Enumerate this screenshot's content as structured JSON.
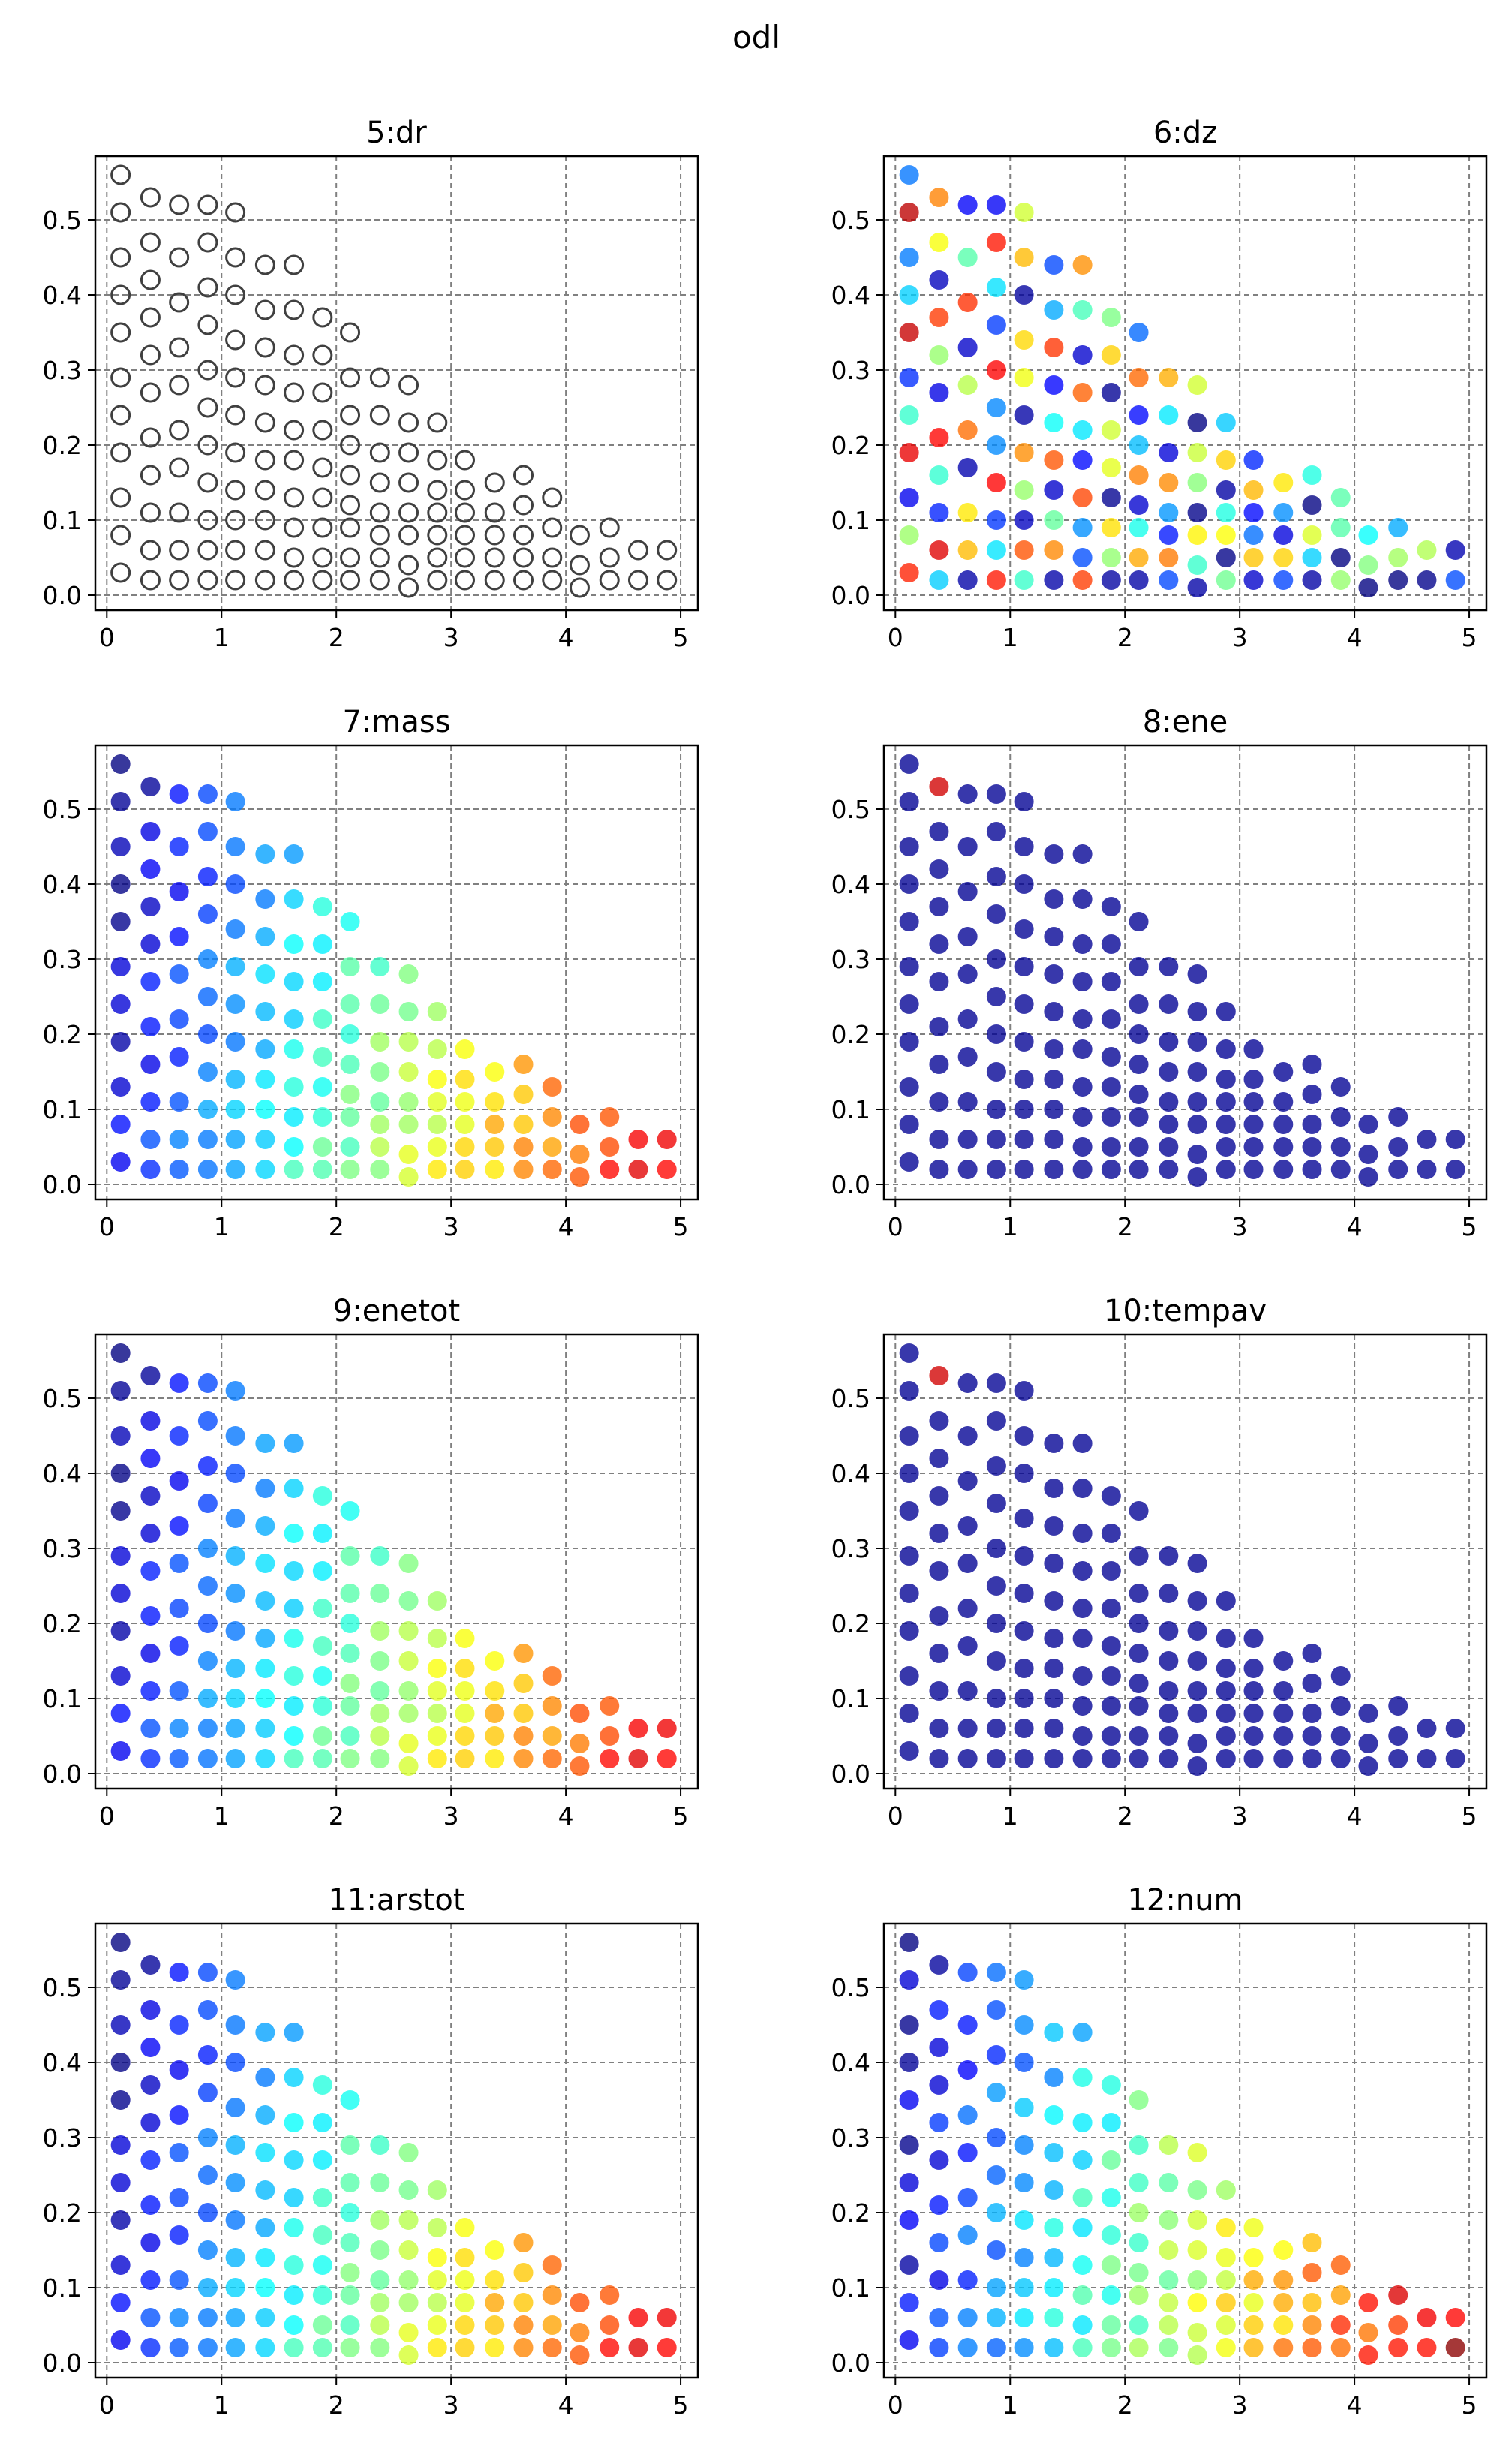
{
  "figure": {
    "title": "odl"
  },
  "axes_common": {
    "xlim": [
      -0.1,
      5.15
    ],
    "ylim": [
      -0.02,
      0.585
    ],
    "xticks": [
      0,
      1,
      2,
      3,
      4,
      5
    ],
    "yticks": [
      0.0,
      0.1,
      0.2,
      0.3,
      0.4,
      0.5
    ],
    "ytick_labels": [
      "0.0",
      "0.1",
      "0.2",
      "0.3",
      "0.4",
      "0.5"
    ],
    "grid": true,
    "grid_style": "dashed gray",
    "colormap": "jet"
  },
  "chart_data": [
    {
      "type": "scatter",
      "title": "5:dr",
      "style": "hollow",
      "field": "dr"
    },
    {
      "type": "scatter",
      "title": "6:dz",
      "style": "filled",
      "field": "dz"
    },
    {
      "type": "scatter",
      "title": "7:mass",
      "style": "filled",
      "field": "mass"
    },
    {
      "type": "scatter",
      "title": "8:ene",
      "style": "filled",
      "field": "ene"
    },
    {
      "type": "scatter",
      "title": "9:enetot",
      "style": "filled",
      "field": "enetot"
    },
    {
      "type": "scatter",
      "title": "10:tempav",
      "style": "filled",
      "field": "tempav"
    },
    {
      "type": "scatter",
      "title": "11:arstot",
      "style": "filled",
      "field": "arstot"
    },
    {
      "type": "scatter",
      "title": "12:num",
      "style": "filled",
      "field": "num"
    }
  ],
  "points": {
    "x": [
      0.12,
      0.12,
      0.12,
      0.12,
      0.12,
      0.12,
      0.12,
      0.12,
      0.12,
      0.12,
      0.12,
      0.38,
      0.38,
      0.38,
      0.38,
      0.38,
      0.38,
      0.38,
      0.38,
      0.38,
      0.38,
      0.38,
      0.63,
      0.63,
      0.63,
      0.63,
      0.63,
      0.63,
      0.63,
      0.63,
      0.63,
      0.63,
      0.88,
      0.88,
      0.88,
      0.88,
      0.88,
      0.88,
      0.88,
      0.88,
      0.88,
      0.88,
      0.88,
      1.12,
      1.12,
      1.12,
      1.12,
      1.12,
      1.12,
      1.12,
      1.12,
      1.12,
      1.12,
      1.12,
      1.38,
      1.38,
      1.38,
      1.38,
      1.38,
      1.38,
      1.38,
      1.38,
      1.38,
      1.38,
      1.63,
      1.63,
      1.63,
      1.63,
      1.63,
      1.63,
      1.63,
      1.63,
      1.63,
      1.63,
      1.88,
      1.88,
      1.88,
      1.88,
      1.88,
      1.88,
      1.88,
      1.88,
      1.88,
      2.12,
      2.12,
      2.12,
      2.12,
      2.12,
      2.12,
      2.12,
      2.12,
      2.12,
      2.38,
      2.38,
      2.38,
      2.38,
      2.38,
      2.38,
      2.38,
      2.38,
      2.63,
      2.63,
      2.63,
      2.63,
      2.63,
      2.63,
      2.63,
      2.63,
      2.88,
      2.88,
      2.88,
      2.88,
      2.88,
      2.88,
      2.88,
      3.12,
      3.12,
      3.12,
      3.12,
      3.12,
      3.12,
      3.38,
      3.38,
      3.38,
      3.38,
      3.38,
      3.63,
      3.63,
      3.63,
      3.63,
      3.63,
      3.88,
      3.88,
      3.88,
      3.88,
      4.12,
      4.12,
      4.12,
      4.38,
      4.38,
      4.38,
      4.63,
      4.63,
      4.88,
      4.88
    ],
    "y": [
      0.03,
      0.08,
      0.13,
      0.19,
      0.24,
      0.29,
      0.35,
      0.4,
      0.45,
      0.51,
      0.56,
      0.02,
      0.06,
      0.11,
      0.16,
      0.21,
      0.27,
      0.32,
      0.37,
      0.42,
      0.47,
      0.53,
      0.02,
      0.06,
      0.11,
      0.17,
      0.22,
      0.28,
      0.33,
      0.39,
      0.45,
      0.52,
      0.02,
      0.06,
      0.1,
      0.15,
      0.2,
      0.25,
      0.3,
      0.36,
      0.41,
      0.47,
      0.52,
      0.02,
      0.06,
      0.1,
      0.14,
      0.19,
      0.24,
      0.29,
      0.34,
      0.4,
      0.45,
      0.51,
      0.02,
      0.06,
      0.1,
      0.14,
      0.18,
      0.23,
      0.28,
      0.33,
      0.38,
      0.44,
      0.02,
      0.05,
      0.09,
      0.13,
      0.18,
      0.22,
      0.27,
      0.32,
      0.38,
      0.44,
      0.02,
      0.05,
      0.09,
      0.13,
      0.17,
      0.22,
      0.27,
      0.32,
      0.37,
      0.02,
      0.05,
      0.09,
      0.12,
      0.16,
      0.2,
      0.24,
      0.29,
      0.35,
      0.02,
      0.05,
      0.08,
      0.11,
      0.15,
      0.19,
      0.24,
      0.29,
      0.01,
      0.04,
      0.08,
      0.11,
      0.15,
      0.19,
      0.23,
      0.28,
      0.02,
      0.05,
      0.08,
      0.11,
      0.14,
      0.18,
      0.23,
      0.02,
      0.05,
      0.08,
      0.11,
      0.14,
      0.18,
      0.02,
      0.05,
      0.08,
      0.11,
      0.15,
      0.02,
      0.05,
      0.08,
      0.12,
      0.16,
      0.02,
      0.05,
      0.09,
      0.13,
      0.01,
      0.04,
      0.08,
      0.02,
      0.05,
      0.09,
      0.02,
      0.06,
      0.02,
      0.06
    ]
  }
}
